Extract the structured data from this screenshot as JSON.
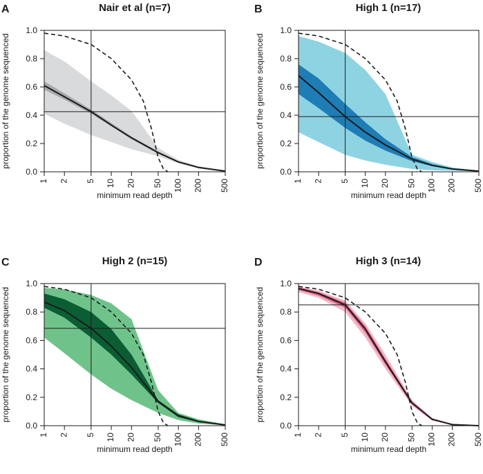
{
  "chart_data": [
    {
      "type": "area",
      "panel_label": "A",
      "title": "Nair et al (n=7)",
      "xlabel": "minimum read depth",
      "ylabel": "proportion of the genome sequenced",
      "xscale": "log",
      "xlim": [
        1,
        500
      ],
      "ylim": [
        0,
        1
      ],
      "xticks": [
        1,
        2,
        5,
        10,
        20,
        50,
        100,
        200,
        500
      ],
      "yticks": [
        "0.0",
        "0.2",
        "0.4",
        "0.6",
        "0.8",
        "1.0"
      ],
      "colors": {
        "outer": "#d9dadc",
        "inner": "#a9aaad",
        "median": "#1a1a1a"
      },
      "reference_vline_x": 5,
      "reference_hline_y": 0.425,
      "x": [
        1,
        2,
        5,
        10,
        20,
        50,
        100,
        200,
        500
      ],
      "median": [
        0.61,
        0.53,
        0.425,
        0.33,
        0.24,
        0.135,
        0.07,
        0.03,
        0.005
      ],
      "inner_band": {
        "lower": [
          0.58,
          0.51,
          0.41,
          0.32,
          0.23,
          0.13,
          0.065,
          0.028,
          0.004
        ],
        "upper": [
          0.64,
          0.555,
          0.44,
          0.345,
          0.25,
          0.145,
          0.075,
          0.035,
          0.006
        ]
      },
      "outer_band": {
        "lower": [
          0.41,
          0.34,
          0.26,
          0.21,
          0.16,
          0.11,
          0.06,
          0.025,
          0.003
        ],
        "upper": [
          0.86,
          0.78,
          0.64,
          0.54,
          0.43,
          0.17,
          0.085,
          0.04,
          0.008
        ]
      },
      "dashed_reference": {
        "x": [
          1,
          2,
          5,
          10,
          20,
          30,
          40,
          50,
          60,
          70
        ],
        "y": [
          0.98,
          0.96,
          0.9,
          0.8,
          0.65,
          0.5,
          0.3,
          0.1,
          0.02,
          0.0
        ]
      }
    },
    {
      "type": "area",
      "panel_label": "B",
      "title": "High 1 (n=17)",
      "xlabel": "minimum read depth",
      "ylabel": "proportion of the genome sequenced",
      "xscale": "log",
      "xlim": [
        1,
        500
      ],
      "ylim": [
        0,
        1
      ],
      "xticks": [
        1,
        2,
        5,
        10,
        20,
        50,
        100,
        200,
        500
      ],
      "yticks": [
        "0.0",
        "0.2",
        "0.4",
        "0.6",
        "0.8",
        "1.0"
      ],
      "colors": {
        "outer": "#8ed3e2",
        "inner": "#1f7db5",
        "median": "#1a1a1a"
      },
      "reference_vline_x": 5,
      "reference_hline_y": 0.39,
      "x": [
        1,
        2,
        5,
        10,
        20,
        50,
        100,
        200,
        500
      ],
      "median": [
        0.68,
        0.56,
        0.39,
        0.28,
        0.19,
        0.09,
        0.045,
        0.02,
        0.005
      ],
      "inner_band": {
        "lower": [
          0.55,
          0.45,
          0.31,
          0.22,
          0.15,
          0.075,
          0.04,
          0.018,
          0.004
        ],
        "upper": [
          0.76,
          0.66,
          0.48,
          0.35,
          0.23,
          0.105,
          0.055,
          0.025,
          0.006
        ]
      },
      "outer_band": {
        "lower": [
          0.28,
          0.21,
          0.12,
          0.08,
          0.05,
          0.02,
          0.01,
          0.008,
          0.003
        ],
        "upper": [
          0.96,
          0.92,
          0.84,
          0.72,
          0.55,
          0.12,
          0.07,
          0.03,
          0.008
        ]
      },
      "dashed_reference": {
        "x": [
          1,
          2,
          5,
          10,
          20,
          30,
          40,
          50,
          60,
          70
        ],
        "y": [
          0.98,
          0.96,
          0.9,
          0.8,
          0.65,
          0.5,
          0.3,
          0.1,
          0.02,
          0.0
        ]
      }
    },
    {
      "type": "area",
      "panel_label": "C",
      "title": "High 2 (n=15)",
      "xlabel": "minimum read depth",
      "ylabel": "proportion of the genome sequenced",
      "xscale": "log",
      "xlim": [
        1,
        500
      ],
      "ylim": [
        0,
        1
      ],
      "xticks": [
        1,
        2,
        5,
        10,
        20,
        50,
        100,
        200,
        500
      ],
      "yticks": [
        "0.0",
        "0.2",
        "0.4",
        "0.6",
        "0.8",
        "1.0"
      ],
      "colors": {
        "outer": "#6fc38a",
        "inner": "#0b5e33",
        "median": "#1a1a1a"
      },
      "reference_vline_x": 5,
      "reference_hline_y": 0.685,
      "x": [
        1,
        2,
        5,
        10,
        20,
        50,
        100,
        200,
        500
      ],
      "median": [
        0.87,
        0.81,
        0.685,
        0.56,
        0.41,
        0.17,
        0.07,
        0.03,
        0.005
      ],
      "inner_band": {
        "lower": [
          0.83,
          0.76,
          0.62,
          0.5,
          0.36,
          0.16,
          0.06,
          0.025,
          0.004
        ],
        "upper": [
          0.93,
          0.89,
          0.8,
          0.68,
          0.5,
          0.18,
          0.08,
          0.035,
          0.006
        ]
      },
      "outer_band": {
        "lower": [
          0.62,
          0.51,
          0.36,
          0.26,
          0.18,
          0.09,
          0.04,
          0.015,
          0.003
        ],
        "upper": [
          0.97,
          0.96,
          0.92,
          0.86,
          0.75,
          0.25,
          0.09,
          0.045,
          0.01
        ]
      },
      "dashed_reference": {
        "x": [
          1,
          2,
          5,
          10,
          20,
          30,
          40,
          50,
          60,
          70
        ],
        "y": [
          0.98,
          0.96,
          0.9,
          0.8,
          0.65,
          0.5,
          0.3,
          0.1,
          0.02,
          0.0
        ]
      }
    },
    {
      "type": "area",
      "panel_label": "D",
      "title": "High 3 (n=14)",
      "xlabel": "minimum read depth",
      "ylabel": "proportion of the genome sequenced",
      "xscale": "log",
      "xlim": [
        1,
        500
      ],
      "ylim": [
        0,
        1
      ],
      "xticks": [
        1,
        2,
        5,
        10,
        20,
        50,
        100,
        200,
        500
      ],
      "yticks": [
        "0.0",
        "0.2",
        "0.4",
        "0.6",
        "0.8",
        "1.0"
      ],
      "colors": {
        "outer": "#f2b8c6",
        "inner": "#d95f80",
        "median": "#1a1a1a"
      },
      "reference_vline_x": 5,
      "reference_hline_y": 0.85,
      "x": [
        1,
        2,
        5,
        10,
        20,
        50,
        100,
        200,
        500
      ],
      "median": [
        0.965,
        0.93,
        0.85,
        0.68,
        0.45,
        0.16,
        0.045,
        0.008,
        0.0
      ],
      "inner_band": {
        "lower": [
          0.955,
          0.915,
          0.83,
          0.655,
          0.43,
          0.15,
          0.04,
          0.006,
          0.0
        ],
        "upper": [
          0.975,
          0.94,
          0.865,
          0.7,
          0.47,
          0.17,
          0.05,
          0.01,
          0.001
        ]
      },
      "outer_band": {
        "lower": [
          0.94,
          0.9,
          0.8,
          0.62,
          0.4,
          0.14,
          0.035,
          0.005,
          0.0
        ],
        "upper": [
          0.98,
          0.95,
          0.88,
          0.72,
          0.5,
          0.18,
          0.055,
          0.012,
          0.002
        ]
      },
      "dashed_reference": {
        "x": [
          1,
          2,
          5,
          10,
          20,
          30,
          40,
          50,
          60,
          70
        ],
        "y": [
          0.98,
          0.96,
          0.9,
          0.8,
          0.65,
          0.5,
          0.3,
          0.1,
          0.02,
          0.0
        ]
      }
    }
  ]
}
